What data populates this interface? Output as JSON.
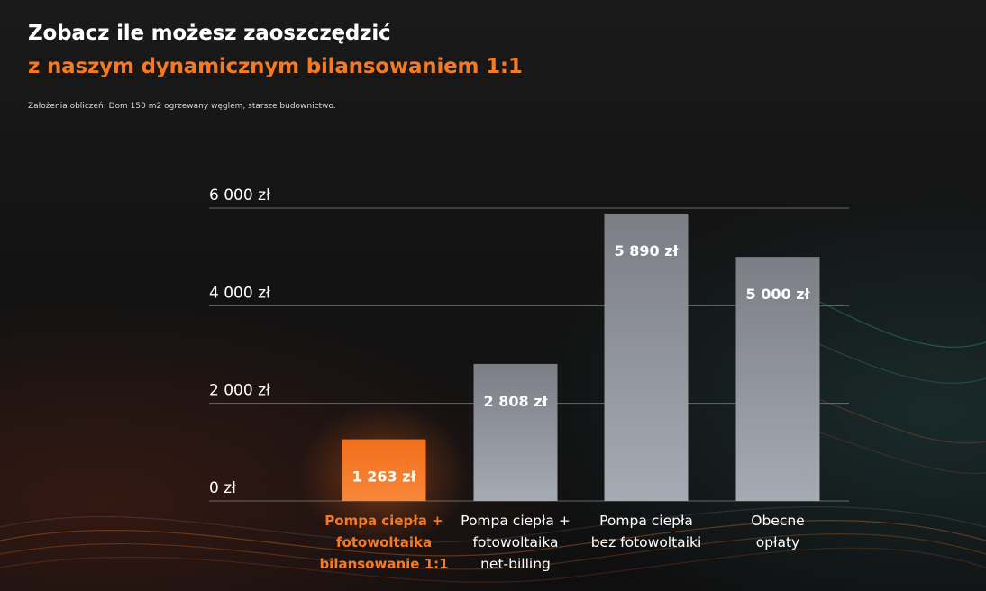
{
  "header": {
    "title_line1": "Zobacz ile możesz zaoszczędzić",
    "title_line2": "z naszym dynamicznym bilansowaniem 1:1",
    "note": "Założenia obliczeń: Dom 150 m2 ogrzewany węglem, starsze budownictwo."
  },
  "colors": {
    "highlight": "#f47a25",
    "bar_top": "#7b7e85",
    "bar_bottom": "#a6aab3",
    "grid": "#8a8a8a",
    "text": "#ffffff",
    "orange_glow": "#ff6a1a"
  },
  "chart_data": {
    "type": "bar",
    "ylim": [
      0,
      6000
    ],
    "y_ticks": [
      {
        "value": 0,
        "label": "0 zł"
      },
      {
        "value": 2000,
        "label": "2 000 zł"
      },
      {
        "value": 4000,
        "label": "4 000 zł"
      },
      {
        "value": 6000,
        "label": "6 000 zł"
      }
    ],
    "grid": true,
    "bars": [
      {
        "category": [
          "Pompa ciepła +",
          "fotowoltaika",
          "bilansowanie 1:1"
        ],
        "value": 1263,
        "value_label": "1 263 zł",
        "highlight": true
      },
      {
        "category": [
          "Pompa ciepła +",
          "fotowoltaika",
          "net-billing"
        ],
        "value": 2808,
        "value_label": "2 808 zł",
        "highlight": false
      },
      {
        "category": [
          "Pompa ciepła",
          "bez fotowoltaiki"
        ],
        "value": 5890,
        "value_label": "5 890 zł",
        "highlight": false
      },
      {
        "category": [
          "Obecne",
          "opłaty"
        ],
        "value": 5000,
        "value_label": "5 000 zł",
        "highlight": false
      }
    ]
  }
}
